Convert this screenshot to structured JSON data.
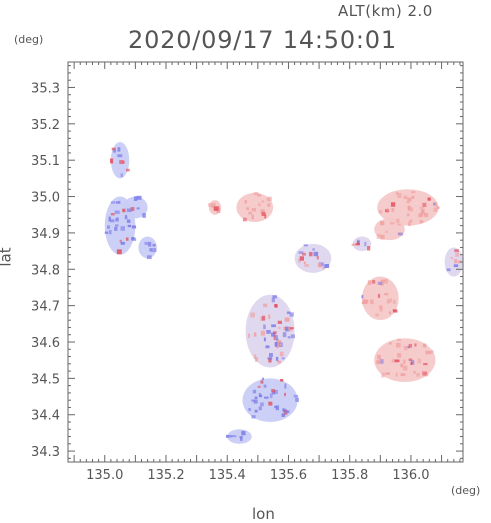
{
  "header": {
    "altitude_label": "ALT(km) 2.0",
    "timestamp": "2020/09/17 14:50:01"
  },
  "axes": {
    "x_label": "lon",
    "y_label": "lat",
    "x_unit": "(deg)",
    "y_unit": "(deg)",
    "x_range": [
      134.88,
      136.17
    ],
    "y_range": [
      34.27,
      35.37
    ],
    "x_ticks": [
      "135.0",
      "135.2",
      "135.4",
      "135.6",
      "135.8",
      "136.0"
    ],
    "y_ticks": [
      "35.3",
      "35.2",
      "35.1",
      "35.0",
      "34.9",
      "34.8",
      "34.7",
      "34.6",
      "34.5",
      "34.4",
      "34.3"
    ]
  },
  "colors": {
    "frame": "#666666",
    "approaching": "#7b7be8",
    "receding": "#f0a0a0",
    "strong_receding": "#e24a5a",
    "weak": "#f6c8c8"
  },
  "echo_regions": [
    {
      "lon": 135.05,
      "lat": 34.92,
      "rx": 0.05,
      "ry": 0.08,
      "polarity": "approaching"
    },
    {
      "lon": 135.1,
      "lat": 34.97,
      "rx": 0.04,
      "ry": 0.03,
      "polarity": "approaching"
    },
    {
      "lon": 135.14,
      "lat": 34.86,
      "rx": 0.03,
      "ry": 0.03,
      "polarity": "approaching"
    },
    {
      "lon": 135.49,
      "lat": 34.97,
      "rx": 0.06,
      "ry": 0.04,
      "polarity": "receding"
    },
    {
      "lon": 135.36,
      "lat": 34.97,
      "rx": 0.02,
      "ry": 0.02,
      "polarity": "receding"
    },
    {
      "lon": 135.99,
      "lat": 34.97,
      "rx": 0.1,
      "ry": 0.05,
      "polarity": "receding"
    },
    {
      "lon": 135.93,
      "lat": 34.91,
      "rx": 0.05,
      "ry": 0.03,
      "polarity": "receding"
    },
    {
      "lon": 135.68,
      "lat": 34.83,
      "rx": 0.06,
      "ry": 0.04,
      "polarity": "mixed"
    },
    {
      "lon": 135.84,
      "lat": 34.87,
      "rx": 0.03,
      "ry": 0.02,
      "polarity": "mixed"
    },
    {
      "lon": 135.9,
      "lat": 34.72,
      "rx": 0.06,
      "ry": 0.06,
      "polarity": "receding"
    },
    {
      "lon": 135.54,
      "lat": 34.63,
      "rx": 0.08,
      "ry": 0.1,
      "polarity": "mixed"
    },
    {
      "lon": 135.54,
      "lat": 34.44,
      "rx": 0.09,
      "ry": 0.06,
      "polarity": "approaching"
    },
    {
      "lon": 135.98,
      "lat": 34.55,
      "rx": 0.1,
      "ry": 0.06,
      "polarity": "receding"
    },
    {
      "lon": 136.14,
      "lat": 34.82,
      "rx": 0.03,
      "ry": 0.04,
      "polarity": "mixed"
    },
    {
      "lon": 135.05,
      "lat": 35.1,
      "rx": 0.03,
      "ry": 0.05,
      "polarity": "approaching"
    },
    {
      "lon": 135.44,
      "lat": 34.34,
      "rx": 0.04,
      "ry": 0.02,
      "polarity": "approaching"
    }
  ]
}
